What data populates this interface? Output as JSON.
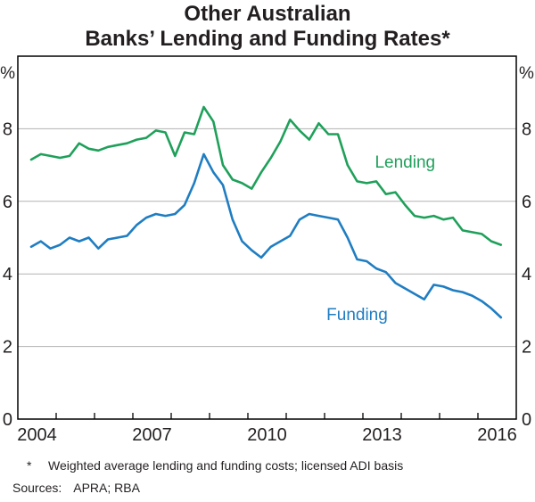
{
  "title": {
    "line1": "Other Australian",
    "line2": "Banks’ Lending and Funding Rates*"
  },
  "footnotes": {
    "marker": "*",
    "note": "Weighted average lending and funding costs; licensed ADI basis",
    "sources_label": "Sources:",
    "sources": "APRA; RBA"
  },
  "chart_data": {
    "type": "line",
    "title": "Other Australian Banks' Lending and Funding Rates*",
    "unit_label": "%",
    "ylim": [
      0,
      10
    ],
    "yticks": [
      0,
      2,
      4,
      6,
      8
    ],
    "gridlines": [
      2,
      4,
      6,
      8
    ],
    "xlim": [
      2004,
      2017
    ],
    "year_ticks": [
      2005,
      2016
    ],
    "x_labels": [
      {
        "text": "2004",
        "at": 2004.5
      },
      {
        "text": "2007",
        "at": 2007.5
      },
      {
        "text": "2010",
        "at": 2010.5
      },
      {
        "text": "2013",
        "at": 2013.5
      },
      {
        "text": "2016",
        "at": 2016.5
      }
    ],
    "grid": true,
    "legend_position": "inline",
    "x_start": 2004.35,
    "x_step": 0.25,
    "colors": {
      "grid": "#b3b3b3",
      "axis": "#000000"
    },
    "series": [
      {
        "name": "Lending",
        "color": "#1fa05a",
        "label_x": 2014.1,
        "label_y": 7.1,
        "values": [
          7.15,
          7.3,
          7.25,
          7.2,
          7.25,
          7.6,
          7.45,
          7.4,
          7.5,
          7.55,
          7.6,
          7.7,
          7.75,
          7.95,
          7.9,
          7.25,
          7.9,
          7.85,
          8.6,
          8.2,
          7.0,
          6.6,
          6.5,
          6.35,
          6.8,
          7.2,
          7.65,
          8.25,
          7.95,
          7.7,
          8.15,
          7.85,
          7.85,
          7.0,
          6.55,
          6.5,
          6.55,
          6.2,
          6.25,
          5.9,
          5.6,
          5.55,
          5.6,
          5.5,
          5.55,
          5.2,
          5.15,
          5.1,
          4.9,
          4.8
        ]
      },
      {
        "name": "Funding",
        "color": "#1f7dc2",
        "label_x": 2012.85,
        "label_y": 2.9,
        "values": [
          4.75,
          4.9,
          4.7,
          4.8,
          5.0,
          4.9,
          5.0,
          4.7,
          4.95,
          5.0,
          5.05,
          5.35,
          5.55,
          5.65,
          5.6,
          5.65,
          5.9,
          6.5,
          7.3,
          6.8,
          6.45,
          5.5,
          4.9,
          4.65,
          4.45,
          4.75,
          4.9,
          5.05,
          5.5,
          5.65,
          5.6,
          5.55,
          5.5,
          5.0,
          4.4,
          4.35,
          4.15,
          4.05,
          3.75,
          3.6,
          3.45,
          3.3,
          3.7,
          3.65,
          3.55,
          3.5,
          3.4,
          3.25,
          3.05,
          2.8
        ]
      }
    ]
  }
}
